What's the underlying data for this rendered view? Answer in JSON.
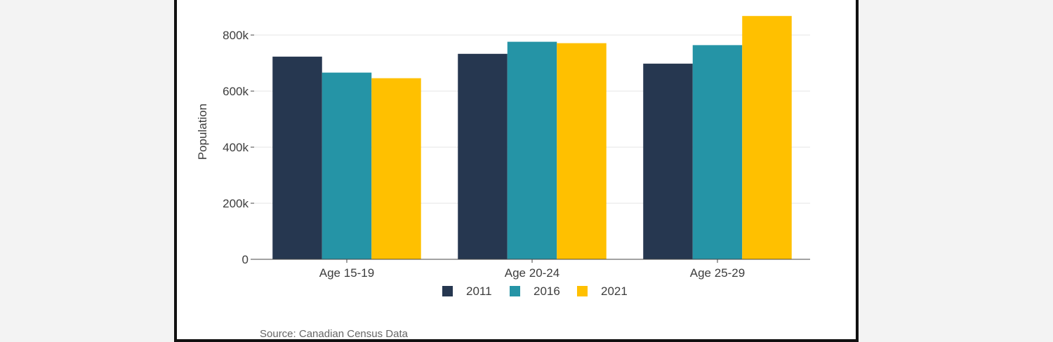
{
  "chart_data": {
    "type": "bar",
    "categories": [
      "Age 15-19",
      "Age 20-24",
      "Age 25-29"
    ],
    "series": [
      {
        "name": "2011",
        "color": "#263750",
        "values": [
          723000,
          733000,
          698000
        ]
      },
      {
        "name": "2016",
        "color": "#2594a6",
        "values": [
          666000,
          776000,
          764000
        ]
      },
      {
        "name": "2021",
        "color": "#ffc000",
        "values": [
          646000,
          771000,
          868000
        ]
      }
    ],
    "ylabel": "Population",
    "xlabel": "",
    "ylim": [
      0,
      860000
    ],
    "yticks": [
      {
        "value": 0,
        "label": "0"
      },
      {
        "value": 200000,
        "label": "200k"
      },
      {
        "value": 400000,
        "label": "400k"
      },
      {
        "value": 600000,
        "label": "600k"
      },
      {
        "value": 800000,
        "label": "800k"
      }
    ],
    "grid": true,
    "legend_position": "bottom"
  },
  "source_note": "Source: Canadian Census Data"
}
